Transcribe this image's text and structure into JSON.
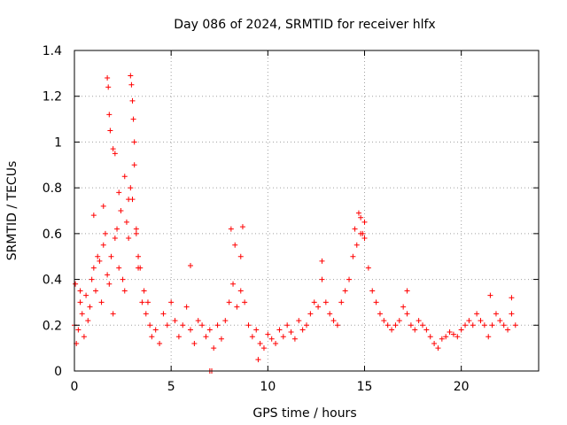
{
  "chart_data": {
    "type": "scatter",
    "title": "Day 086 of 2024, SRMTID for receiver hlfx",
    "xlabel": "GPS time / hours",
    "ylabel": "SRMTID / TECUs",
    "xlim": [
      0,
      24
    ],
    "ylim": [
      0,
      1.4
    ],
    "xticks": [
      0,
      5,
      10,
      15,
      20
    ],
    "xtick_labels": [
      "0",
      "5",
      "10",
      "15",
      "20"
    ],
    "yticks": [
      0,
      0.2,
      0.4,
      0.6,
      0.8,
      1.0,
      1.2,
      1.4
    ],
    "ytick_labels": [
      "0",
      "0.2",
      "0.4",
      "0.6",
      "0.8",
      "1",
      "1.2",
      "1.4"
    ],
    "grid": true,
    "marker": "+",
    "color": "#ff0000",
    "series": [
      {
        "name": "SRMTID",
        "x": [
          0.0,
          0.1,
          0.2,
          0.3,
          0.4,
          0.5,
          0.6,
          0.7,
          0.8,
          0.9,
          1.0,
          1.1,
          1.2,
          1.3,
          1.4,
          1.5,
          1.6,
          1.7,
          1.8,
          1.9,
          2.0,
          2.1,
          2.2,
          2.3,
          2.4,
          2.5,
          2.6,
          2.7,
          2.8,
          2.9,
          3.0,
          3.1,
          3.2,
          3.3,
          3.4,
          3.5,
          3.6,
          3.7,
          3.8,
          3.9,
          4.0,
          4.2,
          4.4,
          4.6,
          4.8,
          5.0,
          5.2,
          5.4,
          5.6,
          5.8,
          6.0,
          6.2,
          6.4,
          6.6,
          6.8,
          7.0,
          7.2,
          7.4,
          7.6,
          7.8,
          8.0,
          8.2,
          8.4,
          8.6,
          8.8,
          9.0,
          9.2,
          9.4,
          9.6,
          9.8,
          10.0,
          10.2,
          10.4,
          10.6,
          10.8,
          11.0,
          11.2,
          11.4,
          11.6,
          11.8,
          12.0,
          12.2,
          12.4,
          12.6,
          12.8,
          13.0,
          13.2,
          13.4,
          13.6,
          13.8,
          14.0,
          14.2,
          14.4,
          14.6,
          14.8,
          15.0,
          15.2,
          15.4,
          15.6,
          15.8,
          16.0,
          16.2,
          16.4,
          16.6,
          16.8,
          17.0,
          17.2,
          17.4,
          17.6,
          17.8,
          18.0,
          18.2,
          18.4,
          18.6,
          18.8,
          19.0,
          19.2,
          19.4,
          19.6,
          19.8,
          20.0,
          20.2,
          20.4,
          20.6,
          20.8,
          21.0,
          21.2,
          21.4,
          21.6,
          21.8,
          22.0,
          22.2,
          22.4,
          22.6,
          22.8,
          1.7,
          1.75,
          1.8,
          1.85,
          2.9,
          2.95,
          3.0,
          3.05,
          3.1,
          2.0,
          2.1,
          2.3,
          2.6,
          2.8,
          3.2,
          3.3,
          0.05,
          0.3,
          1.0,
          1.5,
          8.1,
          8.3,
          8.6,
          8.7,
          14.7,
          14.8,
          14.9,
          15.0,
          14.5,
          12.8,
          6.0,
          7.0,
          7.1,
          9.5,
          17.2,
          21.5,
          22.6
        ],
        "y": [
          0.2,
          0.12,
          0.18,
          0.3,
          0.25,
          0.15,
          0.33,
          0.22,
          0.28,
          0.4,
          0.45,
          0.35,
          0.5,
          0.48,
          0.3,
          0.55,
          0.6,
          0.42,
          0.38,
          0.5,
          0.25,
          0.58,
          0.62,
          0.45,
          0.7,
          0.4,
          0.35,
          0.65,
          0.58,
          0.8,
          0.75,
          0.9,
          0.6,
          0.5,
          0.45,
          0.3,
          0.35,
          0.25,
          0.3,
          0.2,
          0.15,
          0.18,
          0.12,
          0.25,
          0.2,
          0.3,
          0.22,
          0.15,
          0.2,
          0.28,
          0.18,
          0.12,
          0.22,
          0.2,
          0.15,
          0.18,
          0.1,
          0.2,
          0.14,
          0.22,
          0.3,
          0.38,
          0.28,
          0.35,
          0.3,
          0.2,
          0.15,
          0.18,
          0.12,
          0.1,
          0.16,
          0.14,
          0.12,
          0.18,
          0.15,
          0.2,
          0.17,
          0.14,
          0.22,
          0.18,
          0.2,
          0.25,
          0.3,
          0.28,
          0.4,
          0.3,
          0.25,
          0.22,
          0.2,
          0.3,
          0.35,
          0.4,
          0.5,
          0.55,
          0.6,
          0.65,
          0.45,
          0.35,
          0.3,
          0.25,
          0.22,
          0.2,
          0.18,
          0.2,
          0.22,
          0.28,
          0.25,
          0.2,
          0.18,
          0.22,
          0.2,
          0.18,
          0.15,
          0.12,
          0.1,
          0.14,
          0.15,
          0.17,
          0.16,
          0.15,
          0.18,
          0.2,
          0.22,
          0.2,
          0.25,
          0.22,
          0.2,
          0.15,
          0.2,
          0.25,
          0.22,
          0.2,
          0.18,
          0.25,
          0.2,
          1.28,
          1.24,
          1.12,
          1.05,
          1.29,
          1.25,
          1.18,
          1.1,
          1.0,
          0.97,
          0.95,
          0.78,
          0.85,
          0.75,
          0.62,
          0.45,
          0.38,
          0.35,
          0.68,
          0.72,
          0.62,
          0.55,
          0.5,
          0.63,
          0.69,
          0.67,
          0.6,
          0.58,
          0.62,
          0.48,
          0.46,
          0.0,
          0.0,
          0.05,
          0.35,
          0.33,
          0.32
        ]
      }
    ]
  }
}
